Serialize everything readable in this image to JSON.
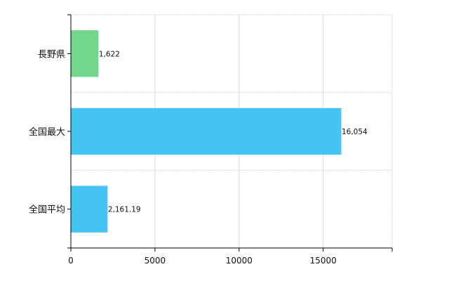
{
  "chart_data": {
    "type": "bar",
    "orientation": "horizontal",
    "categories": [
      "長野県",
      "全国最大",
      "全国平均"
    ],
    "values": [
      1622,
      16054,
      2161.19
    ],
    "value_labels": [
      "1,622",
      "16,054",
      "2,161.19"
    ],
    "bar_colors": [
      "#72d68b",
      "#45c3f3",
      "#45c3f3"
    ],
    "xlim": [
      0,
      19100
    ],
    "xticks": [
      0,
      5000,
      10000,
      15000
    ],
    "xtick_labels": [
      "0",
      "5000",
      "10000",
      "15000"
    ],
    "grid": true,
    "legend": "none",
    "title": "",
    "xlabel": "",
    "ylabel": ""
  }
}
